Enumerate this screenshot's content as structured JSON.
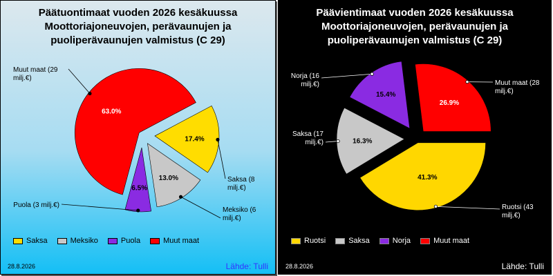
{
  "colors": {
    "Saksa_left": "#ffdd00",
    "Meksiko": "#c8c8c8",
    "Puola": "#8a2be2",
    "Muut maat": "#ff0000",
    "Ruotsi": "#ffd700",
    "Saksa_right": "#c8c8c8",
    "Norja": "#8a2be2"
  },
  "chart_data": [
    {
      "type": "pie",
      "title": [
        "Päätuontimaat vuoden 2026 kesäkuussa",
        "Moottoriajoneuvojen, perävaunujen ja",
        "puoliperävaunujen valmistus (C 29)"
      ],
      "slices": [
        {
          "name": "Saksa",
          "percent": 17.4,
          "percent_label": "17.4%",
          "callout": [
            "Saksa (8",
            "milj.€)"
          ]
        },
        {
          "name": "Meksiko",
          "percent": 13.0,
          "percent_label": "13.0%",
          "callout": [
            "Meksiko (6",
            "milj.€)"
          ]
        },
        {
          "name": "Puola",
          "percent": 6.5,
          "percent_label": "6.5%",
          "callout": [
            "Puola (3 milj.€)"
          ]
        },
        {
          "name": "Muut maat",
          "percent": 63.0,
          "percent_label": "63.0%",
          "callout": [
            "Muut maat (29",
            "milj.€)"
          ]
        }
      ],
      "legend": [
        "Saksa",
        "Meksiko",
        "Puola",
        "Muut maat"
      ],
      "legend_position": "bottom-left",
      "date": "28.8.2026",
      "source": "Lähde: Tulli"
    },
    {
      "type": "pie",
      "title": [
        "Päävientimaat vuoden 2026 kesäkuussa",
        "Moottoriajoneuvojen, perävaunujen ja",
        "puoliperävaunujen valmistus (C 29)"
      ],
      "slices": [
        {
          "name": "Ruotsi",
          "percent": 41.3,
          "percent_label": "41.3%",
          "callout": [
            "Ruotsi (43",
            "milj.€)"
          ]
        },
        {
          "name": "Saksa",
          "percent": 16.3,
          "percent_label": "16.3%",
          "callout": [
            "Saksa (17",
            "milj.€)"
          ]
        },
        {
          "name": "Norja",
          "percent": 15.4,
          "percent_label": "15.4%",
          "callout": [
            "Norja (16",
            "milj.€)"
          ]
        },
        {
          "name": "Muut maat",
          "percent": 26.9,
          "percent_label": "26.9%",
          "callout": [
            "Muut maat (28",
            "milj.€)"
          ]
        }
      ],
      "legend": [
        "Ruotsi",
        "Saksa",
        "Norja",
        "Muut maat"
      ],
      "legend_position": "bottom-left",
      "date": "28.8.2026",
      "source": "Lähde: Tulli"
    }
  ]
}
